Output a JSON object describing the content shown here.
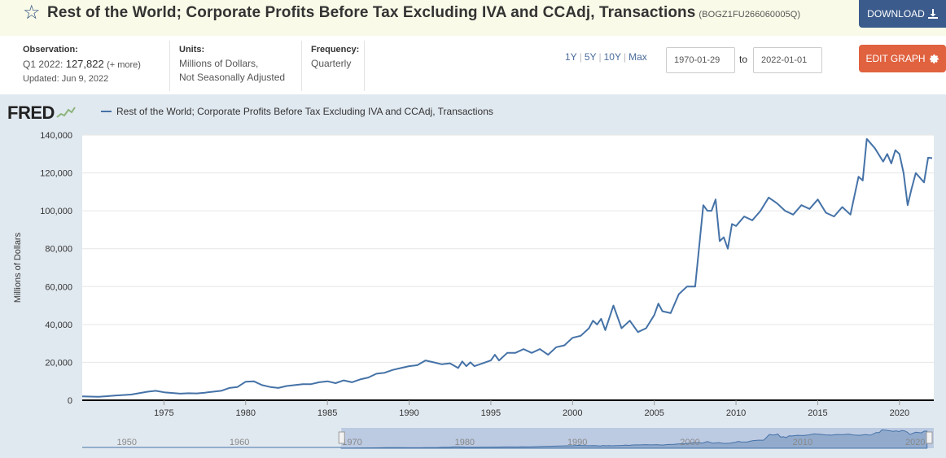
{
  "header": {
    "title": "Rest of the World; Corporate Profits Before Tax Excluding IVA and CCAdj, Transactions",
    "series_id": "(BOGZ1FU266060005Q)",
    "download_label": "DOWNLOAD"
  },
  "meta": {
    "observation_head": "Observation:",
    "observation_period": "Q1 2022:",
    "observation_value": "127,822",
    "observation_more": "(+ more)",
    "updated": "Updated: Jun 9, 2022",
    "units_head": "Units:",
    "units_line1": "Millions of Dollars,",
    "units_line2": "Not Seasonally Adjusted",
    "frequency_head": "Frequency:",
    "frequency_value": "Quarterly"
  },
  "controls": {
    "range_1y": "1Y",
    "range_5y": "5Y",
    "range_10y": "10Y",
    "range_max": "Max",
    "start_date": "1970-01-29",
    "to_label": "to",
    "end_date": "2022-01-01",
    "edit_label": "EDIT GRAPH"
  },
  "logo": "FRED",
  "chart_data": {
    "type": "line",
    "title": "",
    "legend": "Rest of the World; Corporate Profits Before Tax Excluding IVA and CCAdj, Transactions",
    "xlabel": "",
    "ylabel": "Millions of Dollars",
    "xlim": [
      1970.0,
      2022.1
    ],
    "ylim": [
      0,
      140000
    ],
    "x_ticks": [
      1975,
      1980,
      1985,
      1990,
      1995,
      2000,
      2005,
      2010,
      2015,
      2020
    ],
    "y_ticks": [
      0,
      20000,
      40000,
      60000,
      80000,
      100000,
      120000,
      140000
    ],
    "y_tick_labels": [
      "0",
      "20,000",
      "40,000",
      "60,000",
      "80,000",
      "100,000",
      "120,000",
      "140,000"
    ],
    "grid": "horizontal",
    "color": "#4572a7",
    "series": [
      {
        "x": [
          1970.0,
          1971.0,
          1972.0,
          1973.0,
          1974.0,
          1974.5,
          1975.0,
          1976.0,
          1976.5,
          1977.0,
          1977.5,
          1978.0,
          1978.5,
          1979.0,
          1979.5,
          1980.0,
          1980.5,
          1981.0,
          1981.5,
          1982.0,
          1982.5,
          1983.0,
          1983.5,
          1984.0,
          1984.5,
          1985.0,
          1985.5,
          1986.0,
          1986.5,
          1987.0,
          1987.5,
          1988.0,
          1988.5,
          1989.0,
          1989.5,
          1990.0,
          1990.5,
          1991.0,
          1991.5,
          1992.0,
          1992.5,
          1993.0,
          1993.25,
          1993.5,
          1993.75,
          1994.0,
          1994.5,
          1995.0,
          1995.25,
          1995.5,
          1996.0,
          1996.5,
          1997.0,
          1997.5,
          1998.0,
          1998.5,
          1999.0,
          1999.5,
          2000.0,
          2000.5,
          2001.0,
          2001.25,
          2001.5,
          2001.75,
          2002.0,
          2002.5,
          2003.0,
          2003.5,
          2004.0,
          2004.5,
          2005.0,
          2005.25,
          2005.5,
          2006.0,
          2006.5,
          2007.0,
          2007.5,
          2008.0,
          2008.25,
          2008.5,
          2008.75,
          2009.0,
          2009.25,
          2009.5,
          2009.75,
          2010.0,
          2010.5,
          2011.0,
          2011.5,
          2012.0,
          2012.5,
          2013.0,
          2013.5,
          2014.0,
          2014.5,
          2015.0,
          2015.5,
          2016.0,
          2016.5,
          2017.0,
          2017.5,
          2017.75,
          2018.0,
          2018.5,
          2019.0,
          2019.25,
          2019.5,
          2019.75,
          2020.0,
          2020.25,
          2020.5,
          2020.75,
          2021.0,
          2021.5,
          2021.75,
          2022.0
        ],
        "y": [
          2000,
          1800,
          2500,
          3000,
          4500,
          5000,
          4200,
          3500,
          3700,
          3600,
          4000,
          4500,
          5000,
          6500,
          7000,
          9800,
          10000,
          8000,
          7000,
          6500,
          7500,
          8000,
          8500,
          8500,
          9500,
          10000,
          9000,
          10500,
          9500,
          11000,
          12000,
          14000,
          14500,
          16000,
          17000,
          18000,
          18500,
          21000,
          20000,
          19000,
          19500,
          17000,
          20500,
          18000,
          20000,
          18000,
          19500,
          21000,
          24000,
          21000,
          25000,
          25000,
          27000,
          25000,
          27000,
          24000,
          28000,
          29000,
          33000,
          34000,
          38000,
          42000,
          40000,
          43000,
          37000,
          50000,
          38000,
          42000,
          36000,
          38000,
          45000,
          51000,
          47000,
          46000,
          56000,
          60000,
          60000,
          103000,
          100000,
          100000,
          106000,
          84000,
          86000,
          80000,
          93000,
          92000,
          97000,
          95000,
          100000,
          107000,
          104000,
          100000,
          98000,
          103000,
          101000,
          106000,
          99000,
          97000,
          102000,
          98000,
          118000,
          116000,
          138000,
          133000,
          126000,
          130000,
          125000,
          132000,
          130000,
          120000,
          103000,
          112000,
          120000,
          115000,
          128000,
          127822
        ]
      }
    ],
    "navigator_ticks": [
      "1950",
      "1960",
      "1970",
      "1980",
      "1990",
      "2000",
      "2010",
      "2020"
    ]
  }
}
